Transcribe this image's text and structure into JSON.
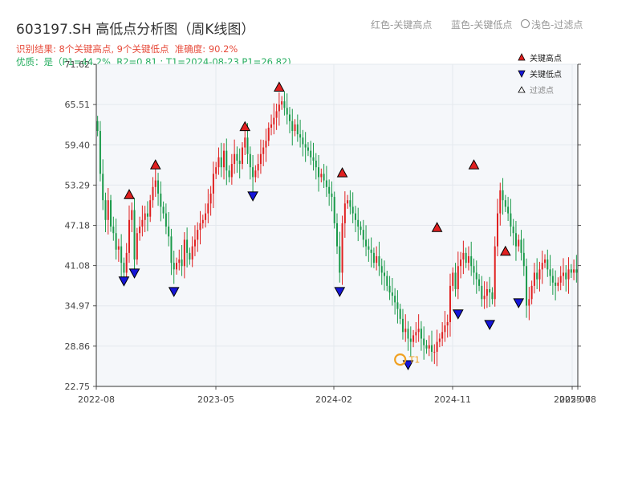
{
  "header": {
    "title": "603197.SH 高低点分析图（周K线图）",
    "result_line": "识别结果: 8个关键高点, 9个关键低点  准确度: 90.2%",
    "quality_line": "优质：是（P1=44.2%, R2=0.81 ; T1=2024-08-23 P1=26.82)",
    "hint_red": "红色-关键高点",
    "hint_blue": "蓝色-关键低点",
    "hint_light": "浅色-过滤点"
  },
  "colors": {
    "up": "#e02020",
    "down": "#1a9a4a",
    "high_marker": "#e02020",
    "low_marker": "#1515d8",
    "t1_marker": "#f0a020",
    "plot_bg": "#f5f7fa",
    "grid": "#e4e8ee"
  },
  "chart_data": {
    "type": "candlestick",
    "ylim": [
      22.75,
      71.62
    ],
    "yticks": [
      "22.75",
      "28.86",
      "34.97",
      "41.08",
      "47.18",
      "53.29",
      "59.40",
      "65.51",
      "71.62"
    ],
    "xticks": [
      "2022-08",
      "2023-05",
      "2024-02",
      "2024-11",
      "2025-07",
      "2025-08"
    ],
    "legend": {
      "position": "top-right",
      "items": [
        {
          "label": "关键高点",
          "marker": "high"
        },
        {
          "label": "关键低点",
          "marker": "low"
        },
        {
          "label": "过滤点",
          "marker": "filtered"
        }
      ]
    },
    "annotation_t1": {
      "label": "T1",
      "time": 115,
      "price": 26.82
    },
    "highs": [
      {
        "time": 12,
        "price": 51.0
      },
      {
        "time": 22,
        "price": 55.5
      },
      {
        "time": 56,
        "price": 61.3
      },
      {
        "time": 69,
        "price": 67.3
      },
      {
        "time": 93,
        "price": 54.3
      },
      {
        "time": 129,
        "price": 46.0
      },
      {
        "time": 143,
        "price": 55.5
      },
      {
        "time": 155,
        "price": 42.4
      }
    ],
    "lows": [
      {
        "time": 10,
        "price": 39.6
      },
      {
        "time": 14,
        "price": 40.8
      },
      {
        "time": 29,
        "price": 38.0
      },
      {
        "time": 59,
        "price": 52.5
      },
      {
        "time": 92,
        "price": 38.0
      },
      {
        "time": 118,
        "price": 26.9
      },
      {
        "time": 137,
        "price": 34.6
      },
      {
        "time": 149,
        "price": 33.0
      },
      {
        "time": 160,
        "price": 36.3
      }
    ],
    "closes": [
      61.5,
      55.0,
      51.0,
      48.0,
      51.0,
      47.0,
      46.0,
      43.5,
      44.0,
      41.5,
      40.0,
      43.0,
      48.0,
      49.5,
      42.0,
      46.0,
      47.0,
      48.0,
      49.0,
      48.5,
      51.0,
      53.0,
      54.0,
      52.0,
      50.0,
      49.0,
      47.0,
      45.5,
      41.5,
      40.5,
      41.5,
      42.0,
      41.0,
      45.0,
      43.0,
      42.0,
      44.0,
      45.0,
      46.5,
      47.5,
      48.0,
      49.0,
      50.5,
      52.0,
      55.0,
      56.0,
      57.5,
      56.0,
      58.5,
      55.5,
      54.5,
      56.5,
      58.0,
      57.0,
      56.5,
      59.0,
      60.5,
      58.0,
      56.0,
      54.5,
      55.5,
      56.5,
      58.0,
      59.0,
      60.0,
      62.0,
      62.5,
      63.5,
      64.5,
      65.5,
      66.0,
      65.0,
      64.0,
      63.0,
      61.5,
      62.5,
      61.0,
      60.5,
      59.5,
      59.0,
      58.5,
      57.5,
      57.0,
      56.0,
      54.5,
      55.0,
      54.0,
      53.0,
      52.0,
      51.5,
      47.5,
      44.0,
      40.0,
      47.5,
      50.5,
      51.0,
      50.0,
      49.0,
      48.0,
      47.0,
      46.5,
      45.0,
      44.0,
      43.5,
      43.0,
      41.5,
      42.5,
      41.0,
      40.0,
      39.5,
      38.0,
      37.0,
      36.5,
      35.5,
      34.5,
      33.0,
      31.0,
      31.5,
      30.0,
      29.5,
      30.5,
      31.0,
      31.5,
      30.0,
      29.0,
      28.5,
      29.0,
      28.0,
      28.0,
      29.5,
      30.0,
      31.0,
      32.0,
      32.5,
      38.0,
      40.0,
      37.5,
      41.0,
      42.0,
      43.0,
      41.5,
      42.5,
      41.0,
      40.0,
      39.0,
      38.0,
      36.0,
      36.5,
      37.5,
      37.0,
      36.0,
      44.0,
      49.0,
      52.5,
      51.0,
      50.0,
      49.0,
      47.0,
      46.0,
      44.0,
      45.0,
      43.0,
      41.0,
      35.0,
      36.0,
      38.0,
      40.0,
      39.0,
      40.5,
      41.5,
      42.0,
      40.5,
      39.5,
      38.5,
      38.0,
      38.5,
      39.5,
      40.0,
      39.0,
      40.5,
      40.0,
      40.5,
      40.0
    ]
  }
}
